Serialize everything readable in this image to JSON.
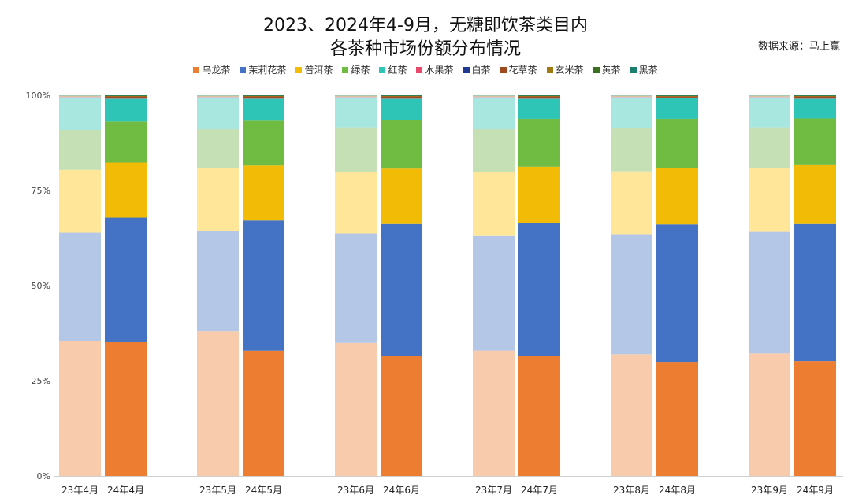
{
  "chart_data": {
    "type": "bar",
    "stacked": true,
    "percent_stacked": true,
    "title": "2023、2024年4-9月，无糖即饮茶类目内",
    "subtitle": "各茶种市场份额分布情况",
    "source": "数据来源：马上赢",
    "ylim": [
      0,
      100
    ],
    "yticks": [
      "0%",
      "25%",
      "50%",
      "75%",
      "100%"
    ],
    "ytick_values": [
      0,
      25,
      50,
      75,
      100
    ],
    "grid": false,
    "legend_position": "top",
    "categories": [
      "23年4月",
      "24年4月",
      "23年5月",
      "24年5月",
      "23年6月",
      "24年6月",
      "23年7月",
      "24年7月",
      "23年8月",
      "24年8月",
      "23年9月",
      "24年9月"
    ],
    "series": [
      {
        "name": "乌龙茶",
        "color": "#ED7D31",
        "color_light": "#F8CBAD",
        "values": [
          35.5,
          35.2,
          38.0,
          33.0,
          35.0,
          31.5,
          33.0,
          31.5,
          32.0,
          30.0,
          32.2,
          30.2
        ]
      },
      {
        "name": "茉莉花茶",
        "color": "#4472C4",
        "color_light": "#B4C7E7",
        "values": [
          28.5,
          32.8,
          26.5,
          34.3,
          28.8,
          34.8,
          30.2,
          35.1,
          31.4,
          36.2,
          32.0,
          36.1
        ]
      },
      {
        "name": "普洱茶",
        "color": "#F2BB05",
        "color_light": "#FFE699",
        "values": [
          16.5,
          14.5,
          16.5,
          14.5,
          16.2,
          14.6,
          16.8,
          14.8,
          16.7,
          14.9,
          16.8,
          15.5
        ]
      },
      {
        "name": "绿茶",
        "color": "#70BB41",
        "color_light": "#C5E0B4",
        "values": [
          10.5,
          10.8,
          10.2,
          11.8,
          11.5,
          12.8,
          11.3,
          12.6,
          11.3,
          12.9,
          10.5,
          12.3
        ]
      },
      {
        "name": "红茶",
        "color": "#2EC4B6",
        "color_light": "#A8E6E0",
        "values": [
          8.5,
          6.0,
          8.3,
          5.8,
          8.0,
          5.6,
          8.3,
          5.3,
          8.1,
          5.4,
          8.0,
          5.2
        ]
      },
      {
        "name": "水果茶",
        "color": "#E8486A",
        "color_light": "#F4B6C3",
        "values": [
          0.1,
          0.1,
          0.1,
          0.1,
          0.1,
          0.1,
          0.1,
          0.1,
          0.1,
          0.1,
          0.1,
          0.1
        ]
      },
      {
        "name": "白茶",
        "color": "#1F3A93",
        "color_light": "#A9B6DA",
        "values": [
          0.1,
          0.1,
          0.1,
          0.1,
          0.1,
          0.1,
          0.1,
          0.1,
          0.1,
          0.1,
          0.1,
          0.1
        ]
      },
      {
        "name": "花草茶",
        "color": "#9E4A1E",
        "color_light": "#D9B19C",
        "values": [
          0.1,
          0.4,
          0.1,
          0.4,
          0.1,
          0.4,
          0.1,
          0.4,
          0.1,
          0.3,
          0.1,
          0.4
        ]
      },
      {
        "name": "玄米茶",
        "color": "#A07A10",
        "color_light": "#DCC98A",
        "values": [
          0.1,
          0.1,
          0.1,
          0.1,
          0.1,
          0.1,
          0.1,
          0.1,
          0.1,
          0.1,
          0.1,
          0.1
        ]
      },
      {
        "name": "黄茶",
        "color": "#3B6E1E",
        "color_light": "#A8C29A",
        "values": [
          0.1,
          0.1,
          0.1,
          0.1,
          0.1,
          0.1,
          0.1,
          0.1,
          0.1,
          0.1,
          0.1,
          0.1
        ]
      },
      {
        "name": "黑茶",
        "color": "#1A7F6E",
        "color_light": "#9CCCC4",
        "values": [
          0.1,
          0.1,
          0.1,
          0.1,
          0.1,
          0.1,
          0.1,
          0.1,
          0.1,
          0.1,
          0.1,
          0.1
        ]
      }
    ]
  }
}
